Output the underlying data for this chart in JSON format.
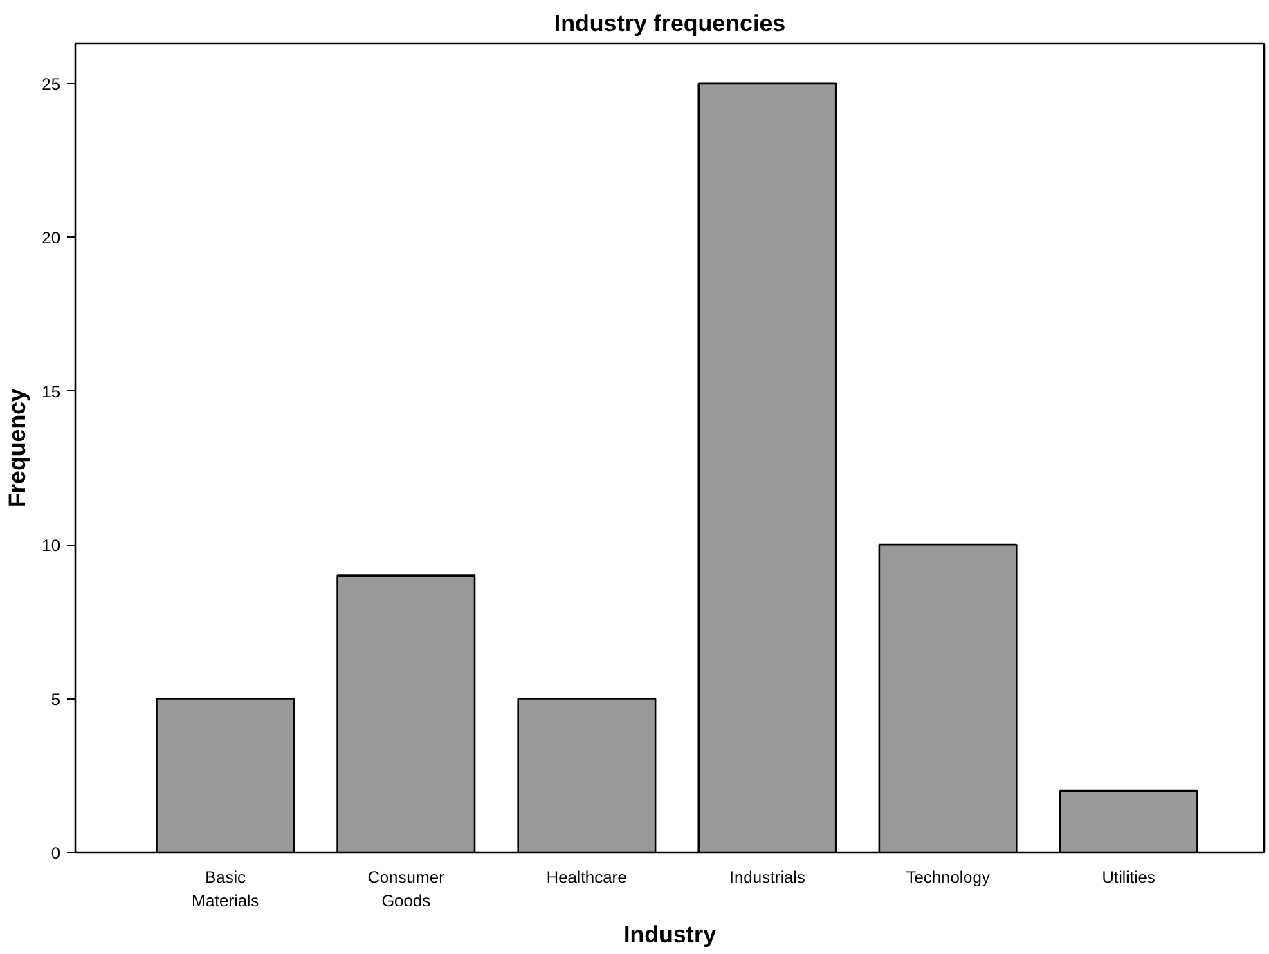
{
  "chart_data": {
    "type": "bar",
    "title": "Industry frequencies",
    "xlabel": "Industry",
    "ylabel": "Frequency",
    "categories": [
      "Basic Materials",
      "Consumer Goods",
      "Healthcare",
      "Industrials",
      "Technology",
      "Utilities"
    ],
    "values": [
      5,
      9,
      5,
      25,
      10,
      2
    ],
    "color": "#999999",
    "ylim": [
      0,
      26.3
    ],
    "yticks": [
      0,
      5,
      10,
      15,
      20,
      25
    ],
    "grid": false
  }
}
